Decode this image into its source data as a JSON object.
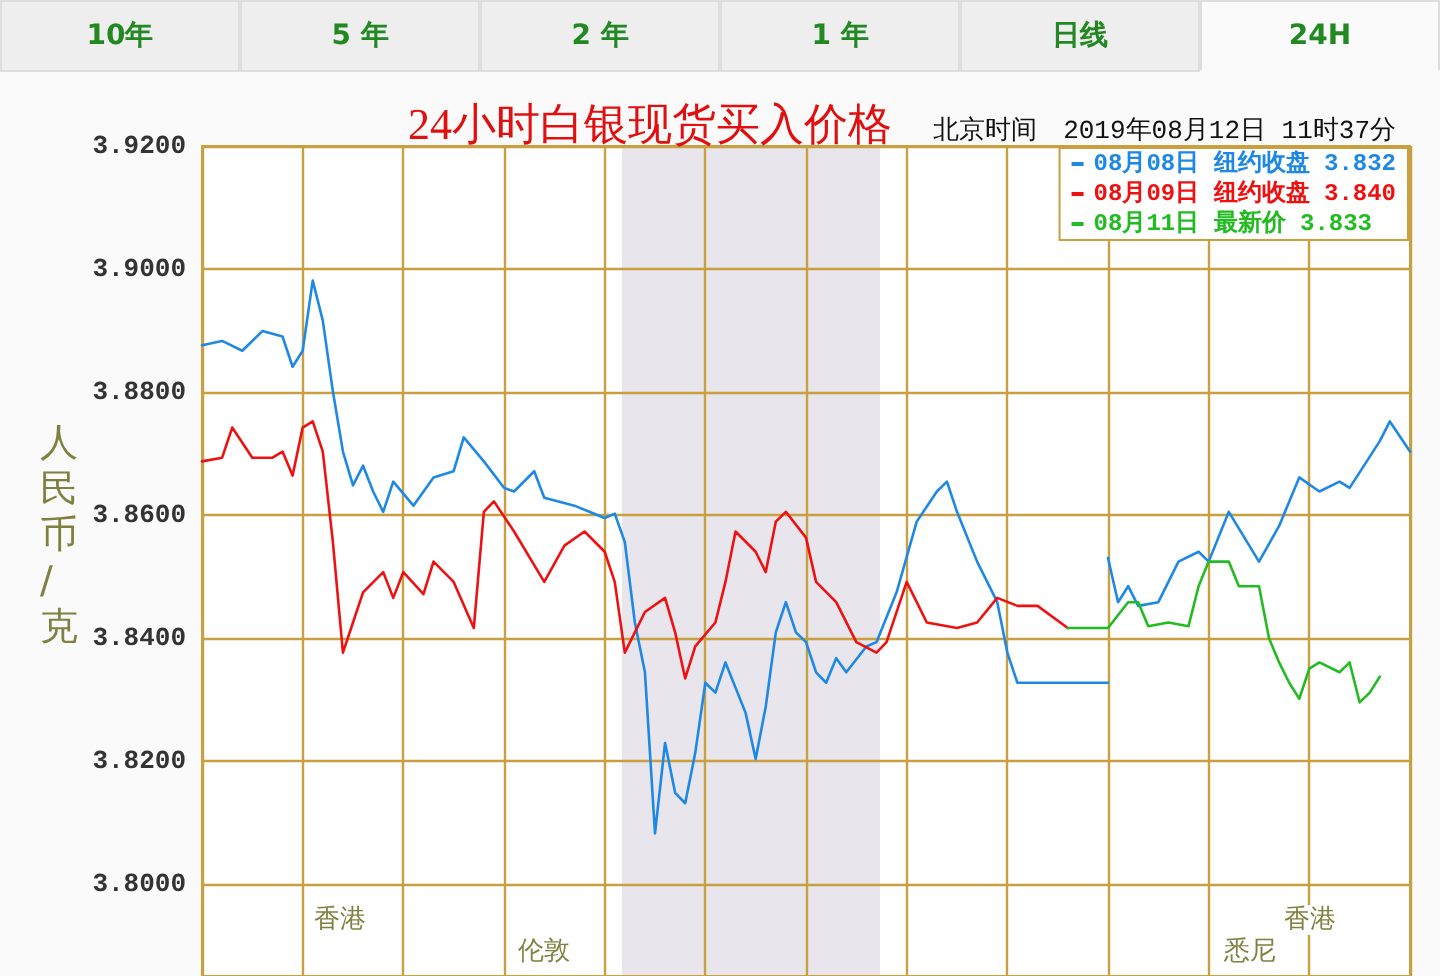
{
  "chart_data": {
    "type": "line",
    "title": "24小时白银现货买入价格",
    "subtitle": "北京时间　2019年08月12日 11时37分",
    "ylabel": "人民币/克",
    "annotations": [
      "10年",
      "5 年",
      "2 年",
      "1 年",
      "日线",
      "24H",
      "香港",
      "伦敦",
      "悉尼",
      "香港"
    ],
    "categories": [
      null,
      null,
      null,
      null,
      null,
      null,
      null,
      null,
      null,
      null,
      null,
      null,
      null,
      null,
      null,
      null,
      null,
      null,
      null,
      null,
      null,
      null,
      null,
      null,
      null,
      null,
      null,
      null,
      null,
      null,
      null,
      null,
      null,
      null,
      null,
      null,
      null,
      null,
      null,
      null,
      null,
      null,
      null,
      null,
      null,
      null,
      null,
      null,
      null,
      null,
      null,
      null,
      null,
      null,
      null,
      null,
      null,
      null,
      null,
      null,
      null,
      null,
      null,
      null,
      null,
      null,
      null,
      null,
      null,
      null,
      null,
      null,
      null,
      null,
      null,
      null,
      null,
      null,
      null,
      null,
      null,
      null,
      null,
      null,
      null,
      null,
      null,
      null,
      null,
      null,
      null,
      null,
      null,
      null,
      null,
      null,
      null,
      null,
      null,
      null,
      null,
      null,
      null,
      null,
      null,
      null,
      null,
      null,
      null,
      null,
      null,
      null,
      null,
      null,
      null,
      null,
      null,
      null,
      null,
      null,
      null
    ],
    "ylim": [
      3.785,
      3.92
    ],
    "yticks": [
      {
        "value": 3.8,
        "label": "3.8000"
      },
      {
        "value": 3.82,
        "label": "3.8200"
      },
      {
        "value": 3.84,
        "label": "3.8400"
      },
      {
        "value": 3.86,
        "label": "3.8600"
      },
      {
        "value": 3.88,
        "label": "3.8800"
      },
      {
        "value": 3.9,
        "label": "3.9000"
      },
      {
        "value": 3.92,
        "label": "3.9200"
      }
    ],
    "tick_labels": "y",
    "grid": true,
    "legend": "top right",
    "line_style": "solid",
    "series": [
      {
        "name": "08月08日 纽约收盘 3.832",
        "color": "#1e88e5",
        "values": [
          3.8876,
          null,
          3.8883,
          null,
          3.8867,
          null,
          3.8899,
          null,
          3.889,
          3.8841,
          3.8867,
          3.8981,
          3.8916,
          3.8801,
          3.8703,
          3.8648,
          3.868,
          3.8638,
          3.8605,
          3.8654,
          null,
          3.8615,
          null,
          3.8661,
          null,
          3.8671,
          3.8726,
          null,
          3.8687,
          null,
          3.8644,
          3.8638,
          null,
          3.8671,
          3.8628,
          null,
          null,
          3.8615,
          null,
          null,
          3.8595,
          3.8602,
          3.8556,
          3.8425,
          3.8344,
          3.8082,
          3.8229,
          3.8148,
          3.8131,
          3.8213,
          3.8327,
          3.8311,
          3.836,
          null,
          3.8278,
          3.8203,
          3.8288,
          3.8409,
          3.8458,
          3.8409,
          3.8393,
          3.8344,
          3.8327,
          3.8367,
          3.8344,
          null,
          3.8386,
          3.8393,
          null,
          3.8474,
          null,
          3.8589,
          null,
          3.8638,
          3.8654,
          3.8605,
          null,
          3.8524,
          null,
          3.8458,
          3.8376,
          3.8327,
          null,
          3.8327,
          null,
          3.8327,
          null,
          null,
          null,
          null,
          3.8327,
          null,
          null,
          null,
          null,
          null,
          null,
          null,
          null,
          null,
          null,
          null,
          null,
          null,
          null,
          null,
          null,
          null,
          null,
          null,
          null,
          null,
          null,
          null,
          null,
          null,
          null,
          null,
          null,
          null,
          null
        ]
      },
      {
        "color": "#1e88e5",
        "values": [
          null,
          null,
          null,
          null,
          null,
          null,
          null,
          null,
          null,
          null,
          null,
          null,
          null,
          null,
          null,
          null,
          null,
          null,
          null,
          null,
          null,
          null,
          null,
          null,
          null,
          null,
          null,
          null,
          null,
          null,
          null,
          null,
          null,
          null,
          null,
          null,
          null,
          null,
          null,
          null,
          null,
          null,
          null,
          null,
          null,
          null,
          null,
          null,
          null,
          null,
          null,
          null,
          null,
          null,
          null,
          null,
          null,
          null,
          null,
          null,
          null,
          null,
          null,
          null,
          null,
          null,
          null,
          null,
          null,
          null,
          null,
          null,
          null,
          null,
          null,
          null,
          null,
          null,
          null,
          null,
          null,
          null,
          null,
          null,
          null,
          null,
          null,
          null,
          null,
          null,
          3.853,
          3.8458,
          3.8484,
          3.8452,
          null,
          3.8458,
          null,
          3.8524,
          null,
          3.854,
          3.8524,
          null,
          3.8605,
          null,
          null,
          3.8524,
          null,
          3.8582,
          null,
          3.8661,
          null,
          3.8638,
          null,
          3.8654,
          3.8644,
          null,
          null,
          3.872,
          3.8752,
          null,
          3.8703
        ]
      },
      {
        "name": "08月09日 纽约收盘 3.840",
        "color": "#ee1111",
        "values": [
          3.8687,
          null,
          3.8693,
          3.8742,
          null,
          3.8693,
          null,
          3.8693,
          3.8703,
          3.8664,
          3.8742,
          3.8752,
          3.8703,
          3.8556,
          3.8376,
          3.8425,
          3.8474,
          null,
          3.8507,
          3.8465,
          3.8507,
          null,
          3.8471,
          3.8524,
          null,
          3.8491,
          null,
          3.8416,
          3.8605,
          3.8622,
          null,
          3.8573,
          null,
          null,
          3.8491,
          null,
          3.855,
          null,
          3.8573,
          null,
          3.854,
          3.8491,
          3.8376,
          null,
          3.8442,
          null,
          3.8465,
          3.8409,
          3.8334,
          3.8386,
          null,
          3.8425,
          3.8491,
          3.8573,
          null,
          3.854,
          3.8507,
          3.8589,
          3.8605,
          null,
          3.8563,
          3.8491,
          null,
          3.8458,
          null,
          3.8393,
          null,
          3.8376,
          3.8393,
          null,
          3.8491,
          3.8458,
          3.8425,
          null,
          null,
          3.8416,
          null,
          3.8425,
          null,
          3.8465,
          null,
          3.8452,
          null,
          3.8452,
          null,
          null,
          3.8416,
          null,
          null,
          null,
          null,
          null,
          null,
          null,
          null,
          null,
          null,
          null,
          null,
          null,
          null,
          null,
          null,
          null,
          null,
          null,
          null,
          null,
          null,
          null,
          null,
          null,
          null,
          null,
          null,
          null,
          null,
          null,
          null,
          null,
          null
        ]
      },
      {
        "name": "08月11日 最新价 3.833",
        "color": "#22bb22",
        "values": [
          null,
          null,
          null,
          null,
          null,
          null,
          null,
          null,
          null,
          null,
          null,
          null,
          null,
          null,
          null,
          null,
          null,
          null,
          null,
          null,
          null,
          null,
          null,
          null,
          null,
          null,
          null,
          null,
          null,
          null,
          null,
          null,
          null,
          null,
          null,
          null,
          null,
          null,
          null,
          null,
          null,
          null,
          null,
          null,
          null,
          null,
          null,
          null,
          null,
          null,
          null,
          null,
          null,
          null,
          null,
          null,
          null,
          null,
          null,
          null,
          null,
          null,
          null,
          null,
          null,
          null,
          null,
          null,
          null,
          null,
          null,
          null,
          null,
          null,
          null,
          null,
          null,
          null,
          null,
          null,
          null,
          null,
          null,
          null,
          null,
          null,
          3.8416,
          null,
          null,
          null,
          3.8416,
          null,
          3.8458,
          3.8458,
          3.8419,
          null,
          3.8425,
          null,
          3.8419,
          3.8484,
          3.8524,
          null,
          3.8524,
          3.8484,
          null,
          3.8484,
          3.8399,
          3.836,
          3.8327,
          3.8301,
          3.835,
          3.836,
          null,
          3.8344,
          3.836,
          3.8295,
          3.8311,
          3.8337,
          null,
          null,
          null
        ]
      }
    ]
  }
}
